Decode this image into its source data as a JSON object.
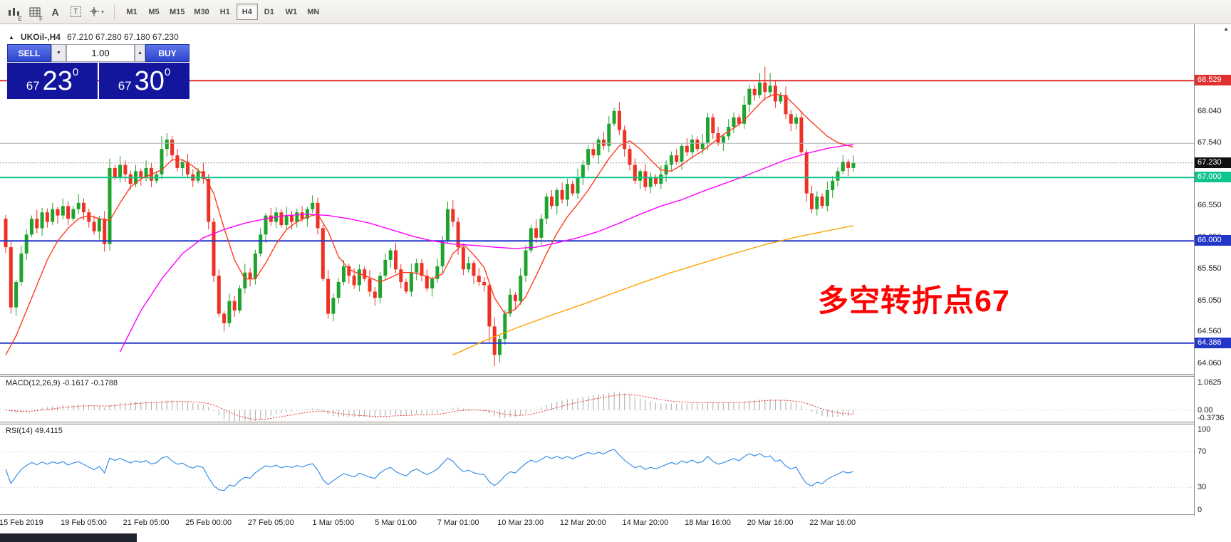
{
  "toolbar": {
    "icons": [
      {
        "name": "indicators-icon",
        "sub": "E"
      },
      {
        "name": "grid-icon",
        "sub": "F"
      },
      {
        "name": "text-label-icon",
        "label": "A"
      },
      {
        "name": "text-box-icon",
        "label": "T"
      },
      {
        "name": "cursor-style-icon",
        "dropdown": "▾"
      }
    ],
    "timeframes": [
      "M1",
      "M5",
      "M15",
      "M30",
      "H1",
      "H4",
      "D1",
      "W1",
      "MN"
    ],
    "active_timeframe": "H4"
  },
  "chart": {
    "collapse_arrow": "▲",
    "title": "UKOil-,H4",
    "ohlc": "67.210 67.280 67.180 67.230"
  },
  "trade_panel": {
    "sell_label": "SELL",
    "buy_label": "BUY",
    "volume": "1.00",
    "spin_down": "▼",
    "spin_up": "▲",
    "sell_price": {
      "small": "67",
      "big": "23",
      "sup": "0"
    },
    "buy_price": {
      "small": "67",
      "big": "30",
      "sup": "0"
    }
  },
  "annotation": {
    "text": "多空转折点67",
    "color": "#ff0000"
  },
  "axis_scroll_arrow": "▲",
  "macd": {
    "label": "MACD(12,26,9)",
    "values": "-0.1617 -0.1788",
    "max": 1.0625,
    "min": -0.3736,
    "axis": [
      {
        "v": 1.0625,
        "t": "1.0625"
      },
      {
        "v": 0,
        "t": "0.00"
      },
      {
        "v": -0.3736,
        "t": "-0.3736"
      }
    ]
  },
  "rsi": {
    "label": "RSI(14)",
    "value": "49.4115",
    "levels": [
      70,
      30
    ],
    "axis": [
      {
        "v": 100,
        "t": "100"
      },
      {
        "v": 70,
        "t": "70"
      },
      {
        "v": 30,
        "t": "30"
      },
      {
        "v": 0,
        "t": "0"
      }
    ]
  },
  "price_axis": {
    "ticks": [
      68.04,
      67.54,
      66.55,
      66.05,
      65.55,
      65.05,
      64.56,
      64.06
    ],
    "badges": [
      {
        "price": 68.529,
        "text": "68.529",
        "bg": "#e03131",
        "fg": "#ffffff"
      },
      {
        "price": 67.23,
        "text": "67.230",
        "bg": "#111111",
        "fg": "#ffffff"
      },
      {
        "price": 67.0,
        "text": "67.000",
        "bg": "#0fc48f",
        "fg": "#ffffff"
      },
      {
        "price": 66.0,
        "text": "66.000",
        "bg": "#2236c8",
        "fg": "#ffffff"
      },
      {
        "price": 64.386,
        "text": "64.386",
        "bg": "#2236c8",
        "fg": "#ffffff"
      }
    ]
  },
  "chart_data": {
    "type": "candlestick",
    "symbol": "UKOil-",
    "timeframe": "H4",
    "price_range": {
      "max": 69.42,
      "min": 63.9
    },
    "colors": {
      "up": "#1fa32e",
      "down": "#ee3124",
      "macd_hist": "#a9a9a9",
      "macd_signal": "#e03131",
      "rsi": "#3b8fe8",
      "levels": "#c0c0c0"
    },
    "h_lines": [
      {
        "price": 68.529,
        "color": "#e03131",
        "width": 2
      },
      {
        "price": 67.54,
        "color": "#b0b0b0",
        "width": 1
      },
      {
        "price": 67.23,
        "color": "#999999",
        "width": 1,
        "dash": "2,2"
      },
      {
        "price": 67.0,
        "color": "#0fc48f",
        "width": 2
      },
      {
        "price": 66.0,
        "color": "#2236c8",
        "width": 2
      },
      {
        "price": 64.386,
        "color": "#2236c8",
        "width": 2
      }
    ],
    "candles": {
      "first_open": 66.35,
      "closes": [
        65.9,
        64.95,
        65.35,
        65.8,
        66.1,
        66.35,
        66.2,
        66.45,
        66.3,
        66.5,
        66.4,
        66.55,
        66.35,
        66.5,
        66.6,
        66.45,
        66.3,
        66.15,
        66.35,
        65.95,
        67.15,
        67.0,
        67.2,
        67.05,
        66.9,
        67.1,
        67.0,
        67.15,
        66.95,
        67.05,
        67.45,
        67.6,
        67.35,
        67.15,
        67.25,
        67.05,
        66.95,
        67.1,
        66.98,
        66.3,
        65.45,
        64.85,
        64.7,
        65.05,
        64.9,
        65.25,
        65.5,
        65.4,
        65.8,
        66.1,
        66.4,
        66.3,
        66.45,
        66.25,
        66.4,
        66.3,
        66.45,
        66.35,
        66.5,
        66.6,
        66.2,
        65.4,
        64.85,
        65.1,
        65.35,
        65.6,
        65.45,
        65.3,
        65.55,
        65.4,
        65.2,
        65.1,
        65.45,
        65.7,
        65.85,
        65.55,
        65.35,
        65.2,
        65.5,
        65.65,
        65.45,
        65.25,
        65.4,
        65.6,
        66.0,
        66.5,
        66.3,
        65.9,
        65.55,
        65.65,
        65.45,
        65.35,
        65.3,
        64.65,
        64.2,
        64.45,
        64.85,
        65.15,
        65.05,
        65.45,
        65.85,
        66.2,
        66.05,
        66.35,
        66.7,
        66.55,
        66.8,
        66.65,
        66.9,
        66.75,
        67.0,
        67.2,
        67.45,
        67.35,
        67.6,
        67.5,
        67.85,
        68.05,
        67.75,
        67.45,
        67.2,
        66.95,
        67.1,
        66.85,
        67.0,
        66.9,
        67.05,
        67.2,
        67.35,
        67.25,
        67.5,
        67.4,
        67.6,
        67.45,
        67.55,
        67.95,
        67.7,
        67.55,
        67.65,
        67.8,
        67.95,
        67.85,
        68.15,
        68.4,
        68.3,
        68.5,
        68.35,
        68.45,
        68.2,
        68.3,
        68.0,
        67.85,
        67.95,
        67.4,
        66.75,
        66.5,
        66.7,
        66.55,
        66.8,
        66.95,
        67.1,
        67.25,
        67.15,
        67.23
      ],
      "wick_pattern_up": [
        0.06,
        0.1,
        0.04,
        0.12,
        0.08,
        0.05,
        0.14,
        0.07
      ],
      "wick_pattern_down": [
        0.09,
        0.05,
        0.13,
        0.06,
        0.1,
        0.04,
        0.08,
        0.12
      ],
      "wick_overrides_up": {
        "20": 0.15,
        "30": 0.2,
        "31": 0.1,
        "85": 0.12,
        "116": 0.12,
        "145": 0.15,
        "146": 0.25,
        "147": 0.2
      },
      "wick_overrides_down": {
        "1": 0.1,
        "19": 0.12,
        "40": 0.1,
        "71": 0.12,
        "93": 0.25,
        "94": 0.18
      }
    },
    "ma_lines": [
      {
        "name": "fast-ma",
        "color": "#ff3b1f",
        "points": [
          [
            0,
            64.2
          ],
          [
            2,
            64.5
          ],
          [
            4,
            64.9
          ],
          [
            6,
            65.3
          ],
          [
            8,
            65.7
          ],
          [
            10,
            66.0
          ],
          [
            12,
            66.2
          ],
          [
            14,
            66.35
          ],
          [
            16,
            66.4
          ],
          [
            18,
            66.35
          ],
          [
            20,
            66.32
          ],
          [
            22,
            66.6
          ],
          [
            24,
            66.85
          ],
          [
            26,
            66.98
          ],
          [
            28,
            67.05
          ],
          [
            30,
            67.12
          ],
          [
            32,
            67.28
          ],
          [
            34,
            67.28
          ],
          [
            36,
            67.18
          ],
          [
            38,
            67.05
          ],
          [
            40,
            66.75
          ],
          [
            42,
            66.2
          ],
          [
            44,
            65.7
          ],
          [
            46,
            65.4
          ],
          [
            48,
            65.4
          ],
          [
            50,
            65.65
          ],
          [
            52,
            65.95
          ],
          [
            54,
            66.18
          ],
          [
            56,
            66.3
          ],
          [
            58,
            66.38
          ],
          [
            60,
            66.42
          ],
          [
            62,
            66.15
          ],
          [
            64,
            65.75
          ],
          [
            66,
            65.55
          ],
          [
            68,
            65.48
          ],
          [
            70,
            65.42
          ],
          [
            72,
            65.35
          ],
          [
            74,
            65.42
          ],
          [
            76,
            65.5
          ],
          [
            78,
            65.5
          ],
          [
            80,
            65.47
          ],
          [
            82,
            65.4
          ],
          [
            84,
            65.48
          ],
          [
            86,
            65.8
          ],
          [
            88,
            65.95
          ],
          [
            90,
            65.78
          ],
          [
            92,
            65.58
          ],
          [
            94,
            65.1
          ],
          [
            96,
            64.85
          ],
          [
            98,
            64.92
          ],
          [
            100,
            65.12
          ],
          [
            102,
            65.45
          ],
          [
            104,
            65.8
          ],
          [
            106,
            66.12
          ],
          [
            108,
            66.38
          ],
          [
            110,
            66.58
          ],
          [
            112,
            66.8
          ],
          [
            114,
            67.05
          ],
          [
            116,
            67.3
          ],
          [
            118,
            67.5
          ],
          [
            120,
            67.58
          ],
          [
            122,
            67.45
          ],
          [
            124,
            67.28
          ],
          [
            126,
            67.12
          ],
          [
            128,
            67.1
          ],
          [
            130,
            67.2
          ],
          [
            132,
            67.32
          ],
          [
            134,
            67.42
          ],
          [
            136,
            67.55
          ],
          [
            138,
            67.68
          ],
          [
            140,
            67.78
          ],
          [
            142,
            67.9
          ],
          [
            144,
            68.08
          ],
          [
            146,
            68.25
          ],
          [
            148,
            68.32
          ],
          [
            150,
            68.28
          ],
          [
            152,
            68.12
          ],
          [
            154,
            67.95
          ],
          [
            156,
            67.8
          ],
          [
            158,
            67.65
          ],
          [
            160,
            67.55
          ],
          [
            163,
            67.48
          ]
        ]
      },
      {
        "name": "mid-ma",
        "color": "#ff00ff",
        "points": [
          [
            22,
            64.25
          ],
          [
            26,
            64.9
          ],
          [
            30,
            65.4
          ],
          [
            34,
            65.8
          ],
          [
            38,
            66.05
          ],
          [
            42,
            66.18
          ],
          [
            46,
            66.28
          ],
          [
            50,
            66.35
          ],
          [
            54,
            66.4
          ],
          [
            58,
            66.42
          ],
          [
            62,
            66.4
          ],
          [
            66,
            66.35
          ],
          [
            70,
            66.28
          ],
          [
            74,
            66.18
          ],
          [
            78,
            66.08
          ],
          [
            82,
            66.0
          ],
          [
            86,
            65.95
          ],
          [
            90,
            65.93
          ],
          [
            94,
            65.9
          ],
          [
            98,
            65.88
          ],
          [
            102,
            65.9
          ],
          [
            106,
            65.97
          ],
          [
            110,
            66.05
          ],
          [
            114,
            66.15
          ],
          [
            118,
            66.28
          ],
          [
            122,
            66.42
          ],
          [
            126,
            66.55
          ],
          [
            130,
            66.65
          ],
          [
            134,
            66.78
          ],
          [
            138,
            66.9
          ],
          [
            142,
            67.02
          ],
          [
            146,
            67.15
          ],
          [
            150,
            67.28
          ],
          [
            154,
            67.38
          ],
          [
            158,
            67.46
          ],
          [
            161,
            67.5
          ],
          [
            163,
            67.52
          ]
        ]
      },
      {
        "name": "slow-ma",
        "color": "#ffa200",
        "points": [
          [
            86,
            64.2
          ],
          [
            92,
            64.42
          ],
          [
            98,
            64.62
          ],
          [
            104,
            64.8
          ],
          [
            110,
            64.97
          ],
          [
            116,
            65.15
          ],
          [
            122,
            65.33
          ],
          [
            128,
            65.5
          ],
          [
            134,
            65.65
          ],
          [
            140,
            65.8
          ],
          [
            146,
            65.94
          ],
          [
            152,
            66.06
          ],
          [
            158,
            66.16
          ],
          [
            163,
            66.24
          ]
        ]
      }
    ],
    "time_labels": [
      {
        "i": 3,
        "t": "15 Feb 2019"
      },
      {
        "i": 15,
        "t": "19 Feb 05:00"
      },
      {
        "i": 27,
        "t": "21 Feb 05:00"
      },
      {
        "i": 39,
        "t": "25 Feb 00:00"
      },
      {
        "i": 51,
        "t": "27 Feb 05:00"
      },
      {
        "i": 63,
        "t": "1 Mar 05:00"
      },
      {
        "i": 75,
        "t": "5 Mar 01:00"
      },
      {
        "i": 87,
        "t": "7 Mar 01:00"
      },
      {
        "i": 99,
        "t": "10 Mar 23:00"
      },
      {
        "i": 111,
        "t": "12 Mar 20:00"
      },
      {
        "i": 123,
        "t": "14 Mar 20:00"
      },
      {
        "i": 135,
        "t": "18 Mar 16:00"
      },
      {
        "i": 147,
        "t": "20 Mar 16:00"
      },
      {
        "i": 159,
        "t": "22 Mar 16:00"
      }
    ]
  }
}
